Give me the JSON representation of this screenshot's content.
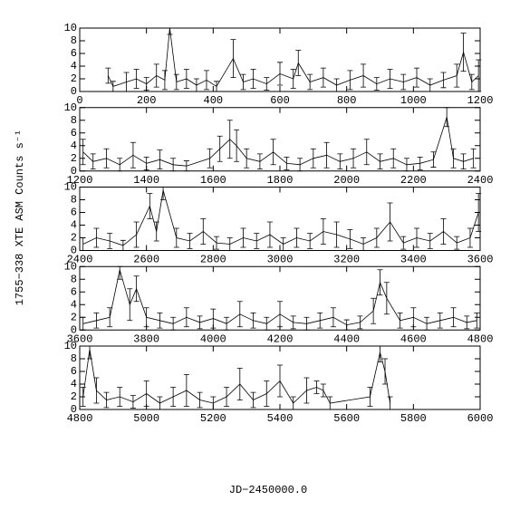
{
  "chart_data": [
    {
      "type": "errorbar",
      "x": [
        85,
        100,
        140,
        170,
        200,
        230,
        255,
        270,
        290,
        320,
        350,
        380,
        410,
        460,
        490,
        520,
        560,
        600,
        640,
        655,
        690,
        730,
        770,
        810,
        850,
        890,
        930,
        970,
        1010,
        1050,
        1090,
        1130,
        1150,
        1175,
        1195
      ],
      "values": [
        2.5,
        0.8,
        1.5,
        2,
        1.2,
        2.5,
        1.8,
        10,
        1.5,
        2,
        1,
        1.8,
        0.8,
        5.2,
        1.5,
        2,
        1.2,
        2.8,
        2,
        4.5,
        1.5,
        2.2,
        1,
        1.8,
        2.5,
        1.2,
        2,
        1.5,
        2.2,
        1,
        1.8,
        2.5,
        6.2,
        1.5,
        2.5
      ],
      "errors": [
        1.2,
        0.8,
        1.5,
        1.5,
        1,
        1.8,
        1.5,
        1,
        1.2,
        1.5,
        1,
        1.5,
        0.8,
        3,
        1.2,
        1.5,
        1,
        1.8,
        1.5,
        2,
        1.2,
        1.5,
        1,
        1.5,
        1.8,
        1,
        1.5,
        1.2,
        1.5,
        1,
        1.2,
        1.8,
        3,
        1.2,
        2.5
      ],
      "xlim": [
        0,
        1200
      ],
      "xticks": [
        0,
        200,
        400,
        600,
        800,
        1000,
        1200
      ],
      "ylim": [
        0,
        10
      ],
      "yticks": [
        0,
        2,
        4,
        6,
        8,
        10
      ]
    },
    {
      "type": "errorbar",
      "x": [
        1210,
        1240,
        1280,
        1320,
        1360,
        1400,
        1440,
        1480,
        1520,
        1590,
        1620,
        1650,
        1670,
        1700,
        1740,
        1780,
        1820,
        1860,
        1900,
        1940,
        1980,
        2020,
        2060,
        2100,
        2140,
        2180,
        2220,
        2260,
        2300,
        2320,
        2350,
        2380
      ],
      "values": [
        3,
        1.5,
        2,
        1,
        2.5,
        1.2,
        1.8,
        1,
        0.8,
        2,
        3.5,
        5,
        4,
        2,
        1.5,
        3,
        1.2,
        1,
        2,
        2.5,
        1.5,
        2,
        3,
        1.5,
        2,
        1,
        1.2,
        1.8,
        8.5,
        2,
        1.5,
        2
      ],
      "errors": [
        2,
        1.2,
        1.5,
        1,
        2,
        1,
        1.5,
        1,
        0.8,
        1.5,
        2,
        3,
        2.5,
        1.5,
        1.2,
        2,
        1,
        1,
        1.5,
        2,
        1.2,
        1.5,
        2,
        1.2,
        1.5,
        1,
        1,
        1.2,
        1.5,
        1.5,
        1.2,
        1.5
      ],
      "xlim": [
        1200,
        2400
      ],
      "xticks": [
        1200,
        1400,
        1600,
        1800,
        2000,
        2200,
        2400
      ],
      "ylim": [
        0,
        10
      ],
      "yticks": [
        0,
        2,
        4,
        6,
        8,
        10
      ]
    },
    {
      "type": "errorbar",
      "x": [
        2410,
        2450,
        2490,
        2530,
        2570,
        2610,
        2630,
        2650,
        2690,
        2730,
        2770,
        2810,
        2850,
        2890,
        2930,
        2970,
        3010,
        3050,
        3090,
        3130,
        3170,
        3210,
        3250,
        3290,
        3330,
        3370,
        3410,
        3450,
        3490,
        3530,
        3570,
        3595
      ],
      "values": [
        1,
        2,
        1.5,
        0.8,
        2.5,
        7,
        3,
        9.5,
        2,
        1.5,
        3,
        1.2,
        1,
        2,
        1.5,
        2.5,
        1,
        2,
        1.5,
        3,
        2.5,
        1.8,
        1,
        2,
        4.5,
        1.2,
        2,
        1.5,
        3,
        1.2,
        2,
        6
      ],
      "errors": [
        1,
        1.5,
        1.2,
        0.8,
        2,
        2,
        1.5,
        1.5,
        1.5,
        1.2,
        2,
        1,
        1,
        1.5,
        1.2,
        2,
        1,
        1.5,
        1.2,
        2,
        2,
        1.5,
        1,
        1.5,
        3,
        1,
        1.5,
        1.2,
        2,
        1,
        1.5,
        3
      ],
      "ylabel": "1755−338 XTE ASM Counts s⁻¹",
      "xlim": [
        2400,
        3600
      ],
      "xticks": [
        2400,
        2600,
        2800,
        3000,
        3200,
        3400,
        3600
      ],
      "ylim": [
        0,
        10
      ],
      "yticks": [
        0,
        2,
        4,
        6,
        8,
        10
      ]
    },
    {
      "type": "errorbar",
      "x": [
        3610,
        3650,
        3690,
        3720,
        3750,
        3770,
        3800,
        3840,
        3880,
        3920,
        3960,
        4000,
        4040,
        4080,
        4120,
        4160,
        4200,
        4240,
        4280,
        4320,
        4360,
        4400,
        4440,
        4480,
        4500,
        4520,
        4560,
        4600,
        4640,
        4680,
        4720,
        4760,
        4790
      ],
      "values": [
        1,
        1.5,
        2,
        9.5,
        4,
        6.5,
        2,
        1.5,
        1,
        2,
        1.2,
        1.8,
        1,
        2.5,
        1.5,
        1,
        2.5,
        1.2,
        1,
        1.5,
        2,
        0.8,
        1.2,
        3,
        7.5,
        5,
        1.5,
        2,
        1,
        1.5,
        2,
        1.2,
        1.5
      ],
      "errors": [
        1,
        1.2,
        1.5,
        1.5,
        2.5,
        2,
        1.5,
        1.2,
        1,
        1.5,
        1,
        1.5,
        1,
        2,
        1.2,
        1,
        2,
        1,
        1,
        1.2,
        1.5,
        0.8,
        1,
        2,
        2,
        2.5,
        1.2,
        1.5,
        1,
        1.2,
        1.5,
        1,
        1.2
      ],
      "xlim": [
        3600,
        4800
      ],
      "xticks": [
        3600,
        3800,
        4000,
        4200,
        4400,
        4600,
        4800
      ],
      "ylim": [
        0,
        10
      ],
      "yticks": [
        0,
        2,
        4,
        6,
        8,
        10
      ]
    },
    {
      "type": "errorbar",
      "x": [
        4810,
        4830,
        4850,
        4880,
        4920,
        4960,
        5000,
        5040,
        5080,
        5120,
        5160,
        5200,
        5240,
        5280,
        5320,
        5360,
        5400,
        5440,
        5480,
        5510,
        5530,
        5550,
        5670,
        5700,
        5715,
        5730
      ],
      "values": [
        2,
        9.5,
        3,
        1.5,
        2,
        1.2,
        2.5,
        1,
        2,
        3,
        1.5,
        1,
        2,
        4,
        1.5,
        2.5,
        4.5,
        1,
        3,
        3.5,
        3,
        1,
        2,
        9,
        6,
        1
      ],
      "errors": [
        1.5,
        1.5,
        2,
        1.2,
        1.5,
        1,
        2,
        1,
        1.5,
        2.5,
        1.2,
        1,
        1.5,
        2.5,
        1.2,
        2,
        2.5,
        1,
        2,
        1,
        1,
        1,
        1.5,
        1.5,
        2,
        1
      ],
      "xlabel": "JD−2450000.0",
      "xlim": [
        4800,
        6000
      ],
      "xticks": [
        4800,
        5000,
        5200,
        5400,
        5600,
        5800,
        6000
      ],
      "ylim": [
        0,
        10
      ],
      "yticks": [
        0,
        2,
        4,
        6,
        8,
        10
      ]
    }
  ]
}
